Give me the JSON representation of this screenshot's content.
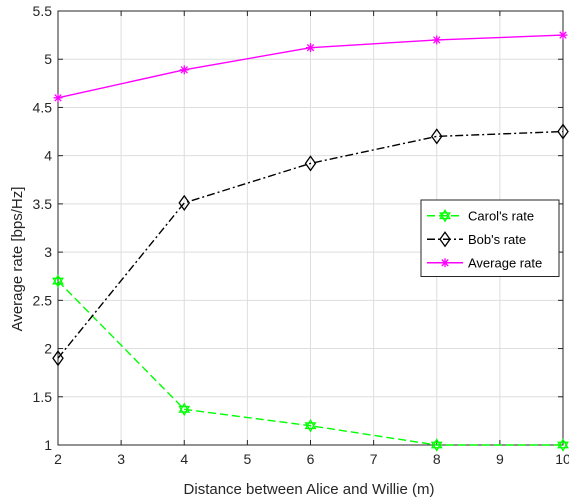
{
  "chart_data": {
    "type": "line",
    "title": "",
    "xlabel": "Distance between Alice and Willie (m)",
    "ylabel": "Average rate [bps/Hz]",
    "xlim": [
      2,
      10
    ],
    "ylim": [
      1,
      5.5
    ],
    "xticks": [
      2,
      3,
      4,
      5,
      6,
      7,
      8,
      9,
      10
    ],
    "yticks": [
      1,
      1.5,
      2,
      2.5,
      3,
      3.5,
      4,
      4.5,
      5,
      5.5
    ],
    "xtick_labels": [
      "2",
      "3",
      "4",
      "5",
      "6",
      "7",
      "8",
      "9",
      "10"
    ],
    "ytick_labels": [
      "1",
      "1.5",
      "2",
      "2.5",
      "3",
      "3.5",
      "4",
      "4.5",
      "5",
      "5.5"
    ],
    "grid": true,
    "legend_position": "center-right",
    "x": [
      2,
      4,
      6,
      8,
      10
    ],
    "series": [
      {
        "name": "Carol's rate",
        "values": [
          2.7,
          1.37,
          1.2,
          1.0,
          1.0
        ],
        "color": "#00ff00",
        "line_style": "dashed",
        "marker": "hexagram"
      },
      {
        "name": "Bob's rate",
        "values": [
          1.9,
          3.51,
          3.92,
          4.2,
          4.25
        ],
        "color": "#000000",
        "line_style": "dash-dot",
        "marker": "diamond"
      },
      {
        "name": "Average rate",
        "values": [
          4.6,
          4.89,
          5.12,
          5.2,
          5.25
        ],
        "color": "#ff00ff",
        "line_style": "solid",
        "marker": "asterisk"
      }
    ]
  }
}
